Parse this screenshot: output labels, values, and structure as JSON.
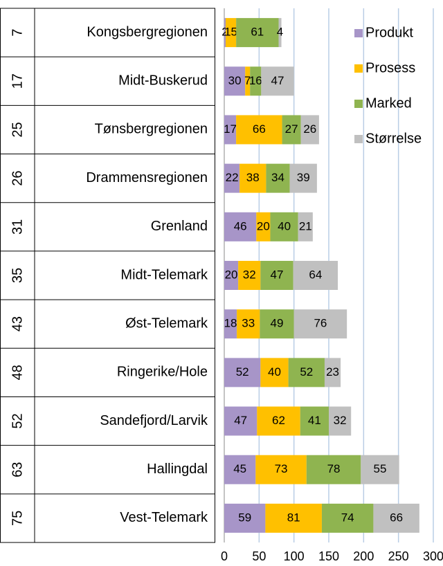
{
  "chart_data": {
    "type": "bar",
    "orientation": "horizontal",
    "stacked": true,
    "ranks": [
      7,
      17,
      25,
      26,
      31,
      35,
      43,
      48,
      52,
      63,
      75
    ],
    "categories": [
      "Kongsbergregionen",
      "Midt-Buskerud",
      "Tønsbergregionen",
      "Drammensregionen",
      "Grenland",
      "Midt-Telemark",
      "Øst-Telemark",
      "Ringerike/Hole",
      "Sandefjord/Larvik",
      "Hallingdal",
      "Vest-Telemark"
    ],
    "series": [
      {
        "name": "Produkt",
        "color": "#a795c8",
        "values": [
          2,
          30,
          17,
          22,
          46,
          20,
          18,
          52,
          47,
          45,
          59
        ]
      },
      {
        "name": "Prosess",
        "color": "#ffc000",
        "values": [
          15,
          7,
          66,
          38,
          20,
          32,
          33,
          40,
          62,
          73,
          81
        ]
      },
      {
        "name": "Marked",
        "color": "#8fb450",
        "values": [
          61,
          16,
          27,
          34,
          40,
          47,
          49,
          52,
          41,
          78,
          74
        ]
      },
      {
        "name": "Størrelse",
        "color": "#c0c0c0",
        "values": [
          4,
          47,
          26,
          39,
          21,
          64,
          76,
          23,
          32,
          55,
          66
        ]
      }
    ],
    "xlim": [
      0,
      300
    ],
    "xticks": [
      0,
      50,
      100,
      150,
      200,
      250,
      300
    ],
    "grid": true,
    "legend": "right"
  }
}
